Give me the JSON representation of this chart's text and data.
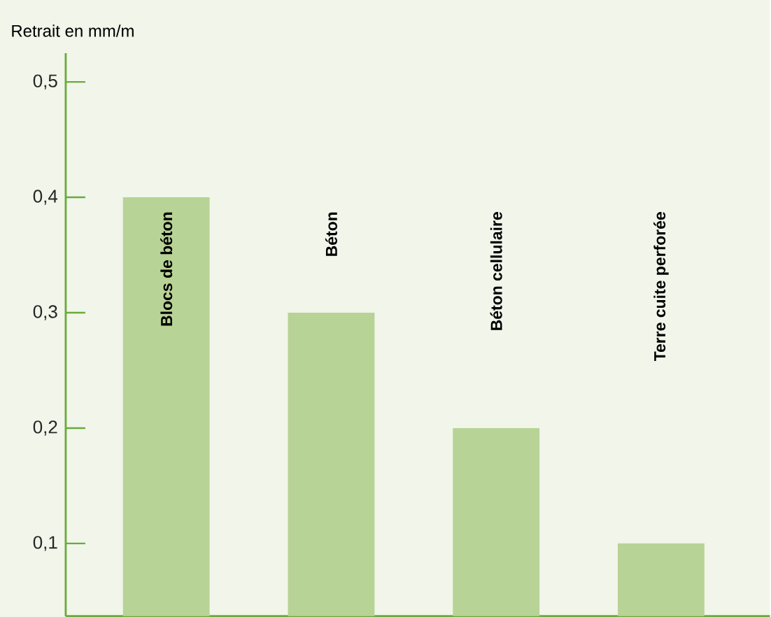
{
  "chart_data": {
    "type": "bar",
    "ylabel": "Retrait en mm/m",
    "categories": [
      "Blocs de béton",
      "Béton",
      "Béton cellulaire",
      "Terre cuite perforée"
    ],
    "values": [
      0.4,
      0.3,
      0.2,
      0.1
    ],
    "color": "#b8d396",
    "ylim": [
      0.037,
      0.525
    ],
    "yticks": [
      {
        "value": 0.1,
        "label": "0,1"
      },
      {
        "value": 0.2,
        "label": "0,2"
      },
      {
        "value": 0.3,
        "label": "0,3"
      },
      {
        "value": 0.4,
        "label": "0,4"
      },
      {
        "value": 0.5,
        "label": "0,5"
      }
    ],
    "grid": false
  }
}
